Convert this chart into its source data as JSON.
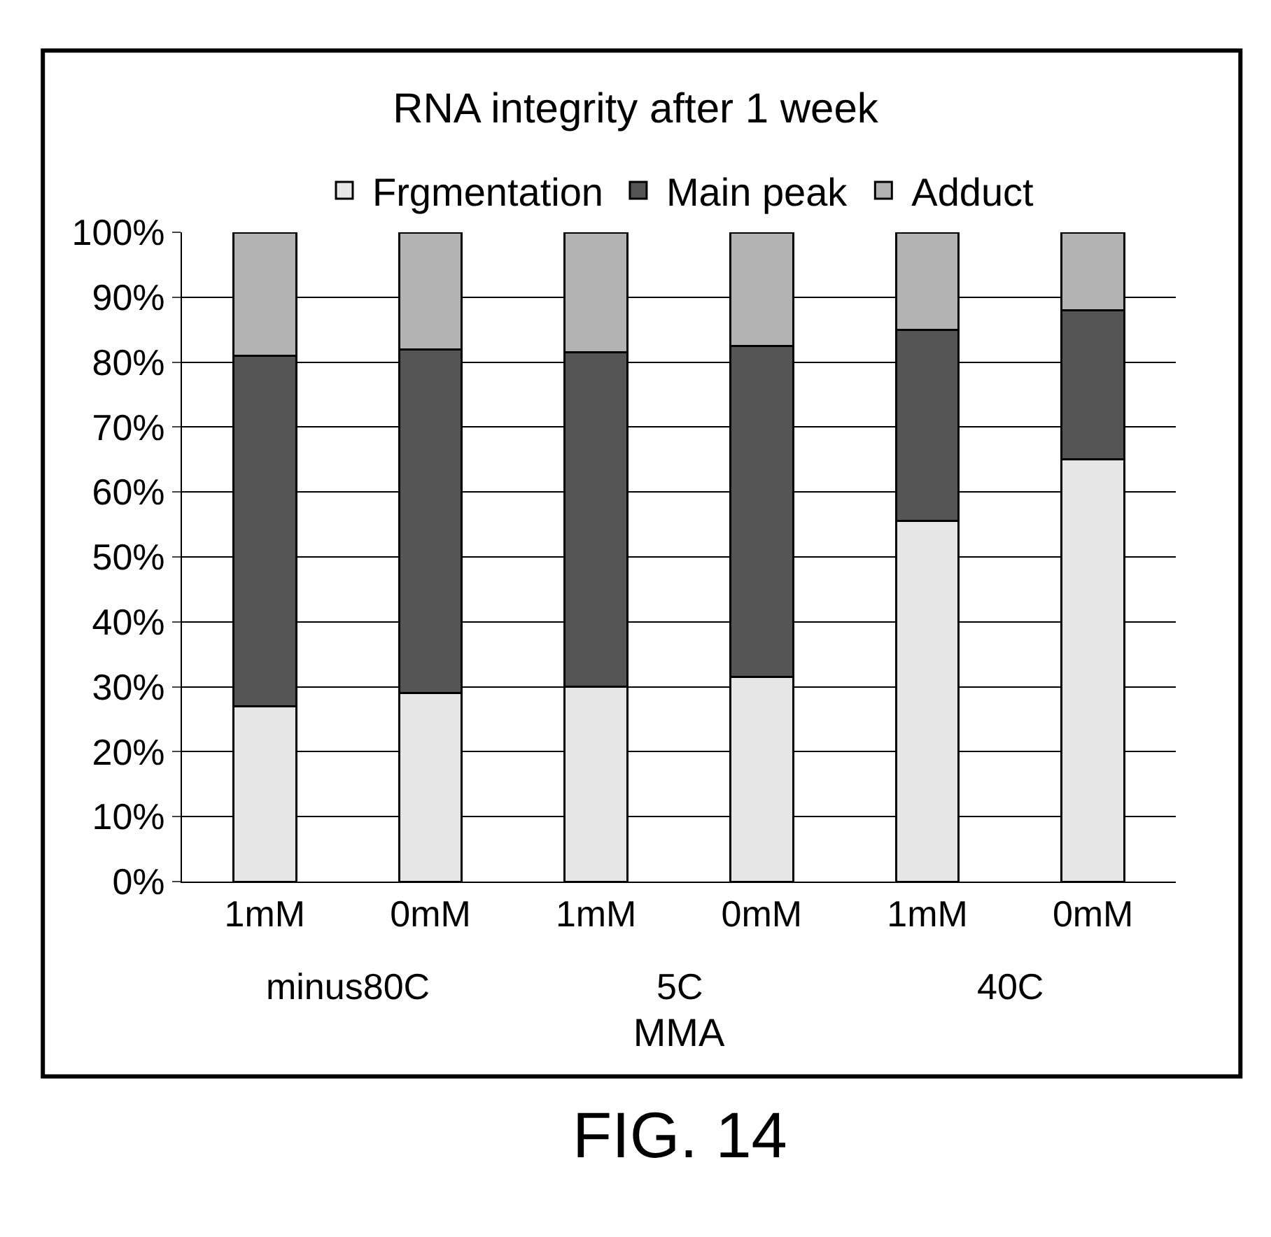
{
  "chart_data": {
    "type": "bar",
    "title": "RNA integrity after 1 week",
    "xlabel": "MMA",
    "categories": [
      "1mM",
      "0mM",
      "1mM",
      "0mM",
      "1mM",
      "0mM"
    ],
    "stacked": true,
    "series": [
      {
        "name": "Frgmentation",
        "color": "#e6e6e6",
        "values": [
          27,
          29,
          30,
          31.5,
          55.5,
          65
        ]
      },
      {
        "name": "Main peak",
        "color": "#555555",
        "values": [
          54,
          53,
          51.5,
          51,
          29.5,
          23
        ]
      },
      {
        "name": "Adduct",
        "color": "#b3b3b3",
        "values": [
          19,
          18,
          18.5,
          17.5,
          15,
          12
        ]
      }
    ],
    "ylim": [
      0,
      100
    ],
    "yticks": [
      {
        "value": 0,
        "label": "0%"
      },
      {
        "value": 10,
        "label": "10%"
      },
      {
        "value": 20,
        "label": "20%"
      },
      {
        "value": 30,
        "label": "30%"
      },
      {
        "value": 40,
        "label": "40%"
      },
      {
        "value": 50,
        "label": "50%"
      },
      {
        "value": 60,
        "label": "60%"
      },
      {
        "value": 70,
        "label": "70%"
      },
      {
        "value": 80,
        "label": "80%"
      },
      {
        "value": 90,
        "label": "90%"
      },
      {
        "value": 100,
        "label": "100%"
      }
    ],
    "grid": "y",
    "legend": "top",
    "annotations": [
      "minus80C",
      "5C",
      "40C",
      "FIG. 14"
    ]
  }
}
